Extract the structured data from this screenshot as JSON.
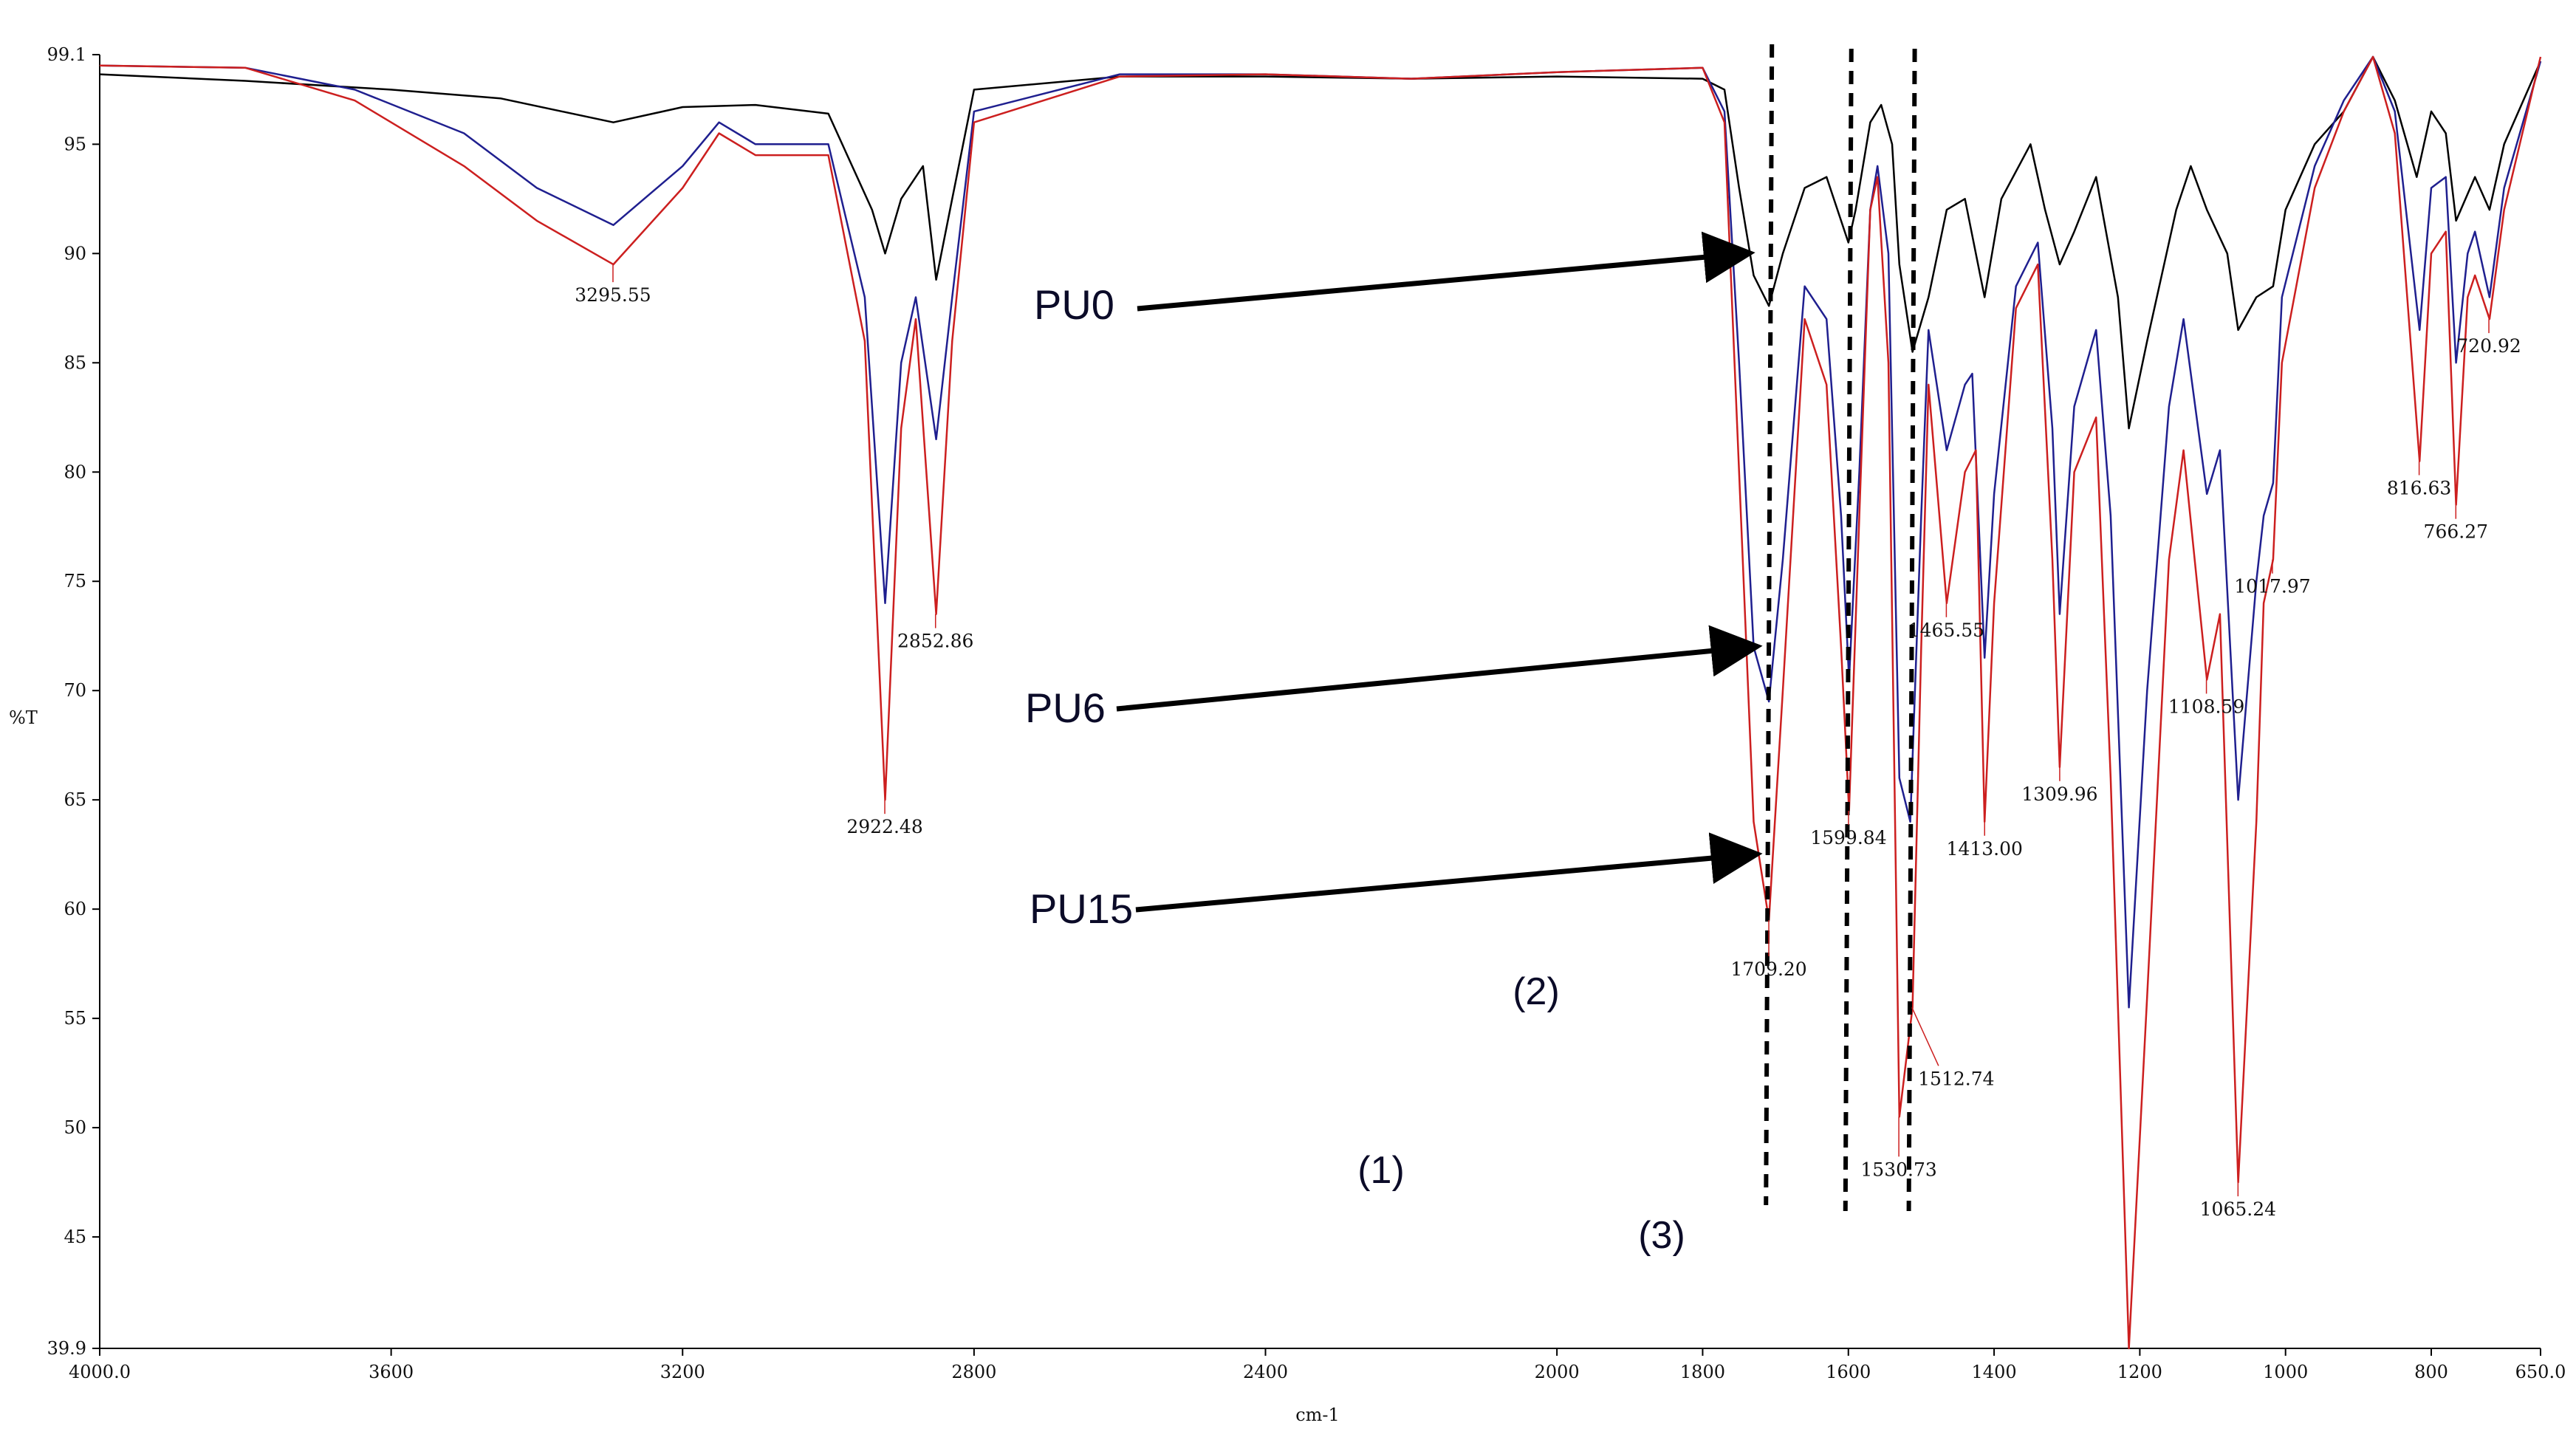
{
  "chart_data": {
    "type": "line",
    "title": "",
    "xlabel": "cm-1",
    "ylabel": "%T",
    "xlim": [
      4000.0,
      650.0
    ],
    "ylim": [
      39.9,
      99.1
    ],
    "x_reversed": true,
    "grid": false,
    "x_ticks": [
      "4000.0",
      "3600",
      "3200",
      "2800",
      "2400",
      "2000",
      "1600",
      "1200",
      "800",
      "650.0",
      "1800",
      "1400",
      "1000"
    ],
    "x_tick_values": [
      4000,
      3600,
      3200,
      2800,
      2400,
      2000,
      1600,
      1200,
      800,
      650,
      1800,
      1400,
      1000
    ],
    "y_ticks": [
      "99.1",
      "95",
      "90",
      "85",
      "80",
      "75",
      "70",
      "65",
      "60",
      "55",
      "50",
      "45",
      "39.9"
    ],
    "y_tick_values": [
      99.1,
      95,
      90,
      85,
      80,
      75,
      70,
      65,
      60,
      55,
      50,
      45,
      39.9
    ],
    "series": [
      {
        "name": "PU0",
        "color": "#000000",
        "points": [
          [
            4000,
            98.2
          ],
          [
            3800,
            97.9
          ],
          [
            3600,
            97.5
          ],
          [
            3450,
            97.1
          ],
          [
            3295,
            96.0
          ],
          [
            3200,
            96.7
          ],
          [
            3100,
            96.8
          ],
          [
            3000,
            96.4
          ],
          [
            2940,
            92.0
          ],
          [
            2922,
            90.0
          ],
          [
            2900,
            92.5
          ],
          [
            2870,
            94.0
          ],
          [
            2852,
            88.8
          ],
          [
            2830,
            92.5
          ],
          [
            2800,
            97.5
          ],
          [
            2600,
            98.1
          ],
          [
            2400,
            98.1
          ],
          [
            2200,
            98.0
          ],
          [
            2000,
            98.1
          ],
          [
            1800,
            98.0
          ],
          [
            1770,
            97.5
          ],
          [
            1750,
            93.0
          ],
          [
            1730,
            89.0
          ],
          [
            1709,
            87.6
          ],
          [
            1690,
            90.0
          ],
          [
            1660,
            93.0
          ],
          [
            1630,
            93.5
          ],
          [
            1600,
            90.5
          ],
          [
            1590,
            92.0
          ],
          [
            1570,
            96.0
          ],
          [
            1555,
            96.8
          ],
          [
            1540,
            95.0
          ],
          [
            1530,
            89.5
          ],
          [
            1512,
            85.5
          ],
          [
            1490,
            88.0
          ],
          [
            1465,
            92.0
          ],
          [
            1440,
            92.5
          ],
          [
            1413,
            88.0
          ],
          [
            1390,
            92.5
          ],
          [
            1350,
            95.0
          ],
          [
            1330,
            92.0
          ],
          [
            1310,
            89.5
          ],
          [
            1290,
            91.0
          ],
          [
            1260,
            93.5
          ],
          [
            1230,
            88.0
          ],
          [
            1215,
            82.0
          ],
          [
            1190,
            86.0
          ],
          [
            1150,
            92.0
          ],
          [
            1130,
            94.0
          ],
          [
            1108,
            92.0
          ],
          [
            1080,
            90.0
          ],
          [
            1065,
            86.5
          ],
          [
            1040,
            88.0
          ],
          [
            1017,
            88.5
          ],
          [
            1000,
            92.0
          ],
          [
            960,
            95.0
          ],
          [
            920,
            96.5
          ],
          [
            880,
            99.0
          ],
          [
            850,
            97.0
          ],
          [
            820,
            93.5
          ],
          [
            800,
            96.5
          ],
          [
            780,
            95.5
          ],
          [
            766,
            91.5
          ],
          [
            740,
            93.5
          ],
          [
            720,
            92.0
          ],
          [
            700,
            95.0
          ],
          [
            650,
            98.8
          ]
        ]
      },
      {
        "name": "PU6",
        "color": "#1f1f8f",
        "points": [
          [
            4000,
            98.6
          ],
          [
            3800,
            98.5
          ],
          [
            3650,
            97.5
          ],
          [
            3500,
            95.5
          ],
          [
            3400,
            93.0
          ],
          [
            3295,
            91.3
          ],
          [
            3200,
            94.0
          ],
          [
            3150,
            96.0
          ],
          [
            3100,
            95.0
          ],
          [
            3000,
            95.0
          ],
          [
            2950,
            88.0
          ],
          [
            2922,
            74.0
          ],
          [
            2900,
            85.0
          ],
          [
            2880,
            88.0
          ],
          [
            2852,
            81.5
          ],
          [
            2830,
            88.0
          ],
          [
            2800,
            96.5
          ],
          [
            2600,
            98.2
          ],
          [
            2400,
            98.2
          ],
          [
            2200,
            98.0
          ],
          [
            2000,
            98.3
          ],
          [
            1800,
            98.5
          ],
          [
            1770,
            96.5
          ],
          [
            1750,
            85.0
          ],
          [
            1730,
            72.0
          ],
          [
            1709,
            69.5
          ],
          [
            1690,
            76.0
          ],
          [
            1660,
            88.5
          ],
          [
            1630,
            87.0
          ],
          [
            1610,
            78.0
          ],
          [
            1599,
            70.5
          ],
          [
            1585,
            80.0
          ],
          [
            1570,
            92.0
          ],
          [
            1560,
            94.0
          ],
          [
            1545,
            90.0
          ],
          [
            1530,
            66.0
          ],
          [
            1515,
            64.0
          ],
          [
            1500,
            78.0
          ],
          [
            1490,
            86.5
          ],
          [
            1465,
            81.0
          ],
          [
            1440,
            84.0
          ],
          [
            1430,
            84.5
          ],
          [
            1413,
            71.5
          ],
          [
            1400,
            79.0
          ],
          [
            1370,
            88.5
          ],
          [
            1340,
            90.5
          ],
          [
            1320,
            82.0
          ],
          [
            1310,
            73.5
          ],
          [
            1290,
            83.0
          ],
          [
            1260,
            86.5
          ],
          [
            1240,
            78.0
          ],
          [
            1215,
            55.5
          ],
          [
            1190,
            70.0
          ],
          [
            1160,
            83.0
          ],
          [
            1140,
            87.0
          ],
          [
            1108,
            79.0
          ],
          [
            1090,
            81.0
          ],
          [
            1065,
            65.0
          ],
          [
            1040,
            75.0
          ],
          [
            1030,
            78.0
          ],
          [
            1017,
            79.5
          ],
          [
            1005,
            88.0
          ],
          [
            960,
            94.0
          ],
          [
            920,
            97.0
          ],
          [
            880,
            99.0
          ],
          [
            850,
            96.5
          ],
          [
            816,
            86.5
          ],
          [
            800,
            93.0
          ],
          [
            780,
            93.5
          ],
          [
            766,
            85.0
          ],
          [
            750,
            90.0
          ],
          [
            740,
            91.0
          ],
          [
            720,
            88.0
          ],
          [
            700,
            93.0
          ],
          [
            650,
            98.8
          ]
        ]
      },
      {
        "name": "PU15",
        "color": "#cc1f1f",
        "points": [
          [
            4000,
            98.6
          ],
          [
            3800,
            98.5
          ],
          [
            3650,
            97.0
          ],
          [
            3500,
            94.0
          ],
          [
            3400,
            91.5
          ],
          [
            3295,
            89.5
          ],
          [
            3200,
            93.0
          ],
          [
            3150,
            95.5
          ],
          [
            3100,
            94.5
          ],
          [
            3000,
            94.5
          ],
          [
            2950,
            86.0
          ],
          [
            2922,
            65.0
          ],
          [
            2900,
            82.0
          ],
          [
            2880,
            87.0
          ],
          [
            2852,
            73.5
          ],
          [
            2830,
            86.0
          ],
          [
            2800,
            96.0
          ],
          [
            2600,
            98.1
          ],
          [
            2400,
            98.2
          ],
          [
            2200,
            98.0
          ],
          [
            2000,
            98.3
          ],
          [
            1800,
            98.5
          ],
          [
            1770,
            96.0
          ],
          [
            1750,
            80.0
          ],
          [
            1730,
            64.0
          ],
          [
            1709,
            59.5
          ],
          [
            1690,
            70.0
          ],
          [
            1660,
            87.0
          ],
          [
            1630,
            84.0
          ],
          [
            1610,
            72.0
          ],
          [
            1599,
            64.5
          ],
          [
            1585,
            78.0
          ],
          [
            1570,
            92.0
          ],
          [
            1560,
            93.5
          ],
          [
            1545,
            85.0
          ],
          [
            1530,
            50.5
          ],
          [
            1512,
            55.5
          ],
          [
            1500,
            72.0
          ],
          [
            1490,
            84.0
          ],
          [
            1465,
            74.0
          ],
          [
            1440,
            80.0
          ],
          [
            1425,
            81.0
          ],
          [
            1413,
            64.0
          ],
          [
            1400,
            74.0
          ],
          [
            1370,
            87.5
          ],
          [
            1340,
            89.5
          ],
          [
            1320,
            76.0
          ],
          [
            1310,
            66.5
          ],
          [
            1290,
            80.0
          ],
          [
            1260,
            82.5
          ],
          [
            1240,
            66.0
          ],
          [
            1215,
            39.9
          ],
          [
            1190,
            56.0
          ],
          [
            1160,
            76.0
          ],
          [
            1140,
            81.0
          ],
          [
            1108,
            70.5
          ],
          [
            1090,
            73.5
          ],
          [
            1065,
            47.5
          ],
          [
            1040,
            64.0
          ],
          [
            1030,
            74.0
          ],
          [
            1017,
            76.0
          ],
          [
            1005,
            85.0
          ],
          [
            960,
            93.0
          ],
          [
            920,
            96.5
          ],
          [
            880,
            99.0
          ],
          [
            850,
            95.5
          ],
          [
            816,
            80.5
          ],
          [
            800,
            90.0
          ],
          [
            780,
            91.0
          ],
          [
            766,
            78.5
          ],
          [
            750,
            88.0
          ],
          [
            740,
            89.0
          ],
          [
            720,
            87.0
          ],
          [
            700,
            92.0
          ],
          [
            650,
            99.0
          ]
        ]
      }
    ],
    "peak_labels": [
      {
        "text": "3295.55",
        "x": 3295.55,
        "y": 89.5
      },
      {
        "text": "2922.48",
        "x": 2922.48,
        "y": 65.0
      },
      {
        "text": "2852.86",
        "x": 2852.86,
        "y": 73.5
      },
      {
        "text": "1709.20",
        "x": 1709.2,
        "y": 59.5
      },
      {
        "text": "1599.84",
        "x": 1599.84,
        "y": 64.5
      },
      {
        "text": "1530.73",
        "x": 1530.73,
        "y": 50.5
      },
      {
        "text": "1512.74",
        "x": 1512.74,
        "y": 55.5
      },
      {
        "text": "1465.55",
        "x": 1465.55,
        "y": 74.0
      },
      {
        "text": "1413.00",
        "x": 1413.0,
        "y": 64.0
      },
      {
        "text": "1309.96",
        "x": 1309.96,
        "y": 66.5
      },
      {
        "text": "1108.59",
        "x": 1108.59,
        "y": 70.5
      },
      {
        "text": "1065.24",
        "x": 1065.24,
        "y": 47.5
      },
      {
        "text": "1017.97",
        "x": 1017.97,
        "y": 76.0
      },
      {
        "text": "816.63",
        "x": 816.63,
        "y": 80.5
      },
      {
        "text": "766.27",
        "x": 766.27,
        "y": 78.5
      },
      {
        "text": "720.92",
        "x": 720.92,
        "y": 87.0
      }
    ],
    "annotations": [
      {
        "text": "PU0",
        "target_x": 1750,
        "target_y": 90.0
      },
      {
        "text": "PU6",
        "target_x": 1740,
        "target_y": 72.0
      },
      {
        "text": "PU15",
        "target_x": 1740,
        "target_y": 62.5
      }
    ],
    "region_markers": [
      {
        "text": "(1)",
        "x": 1709
      },
      {
        "text": "(2)",
        "x": 1600
      },
      {
        "text": "(3)",
        "x": 1513
      }
    ]
  }
}
